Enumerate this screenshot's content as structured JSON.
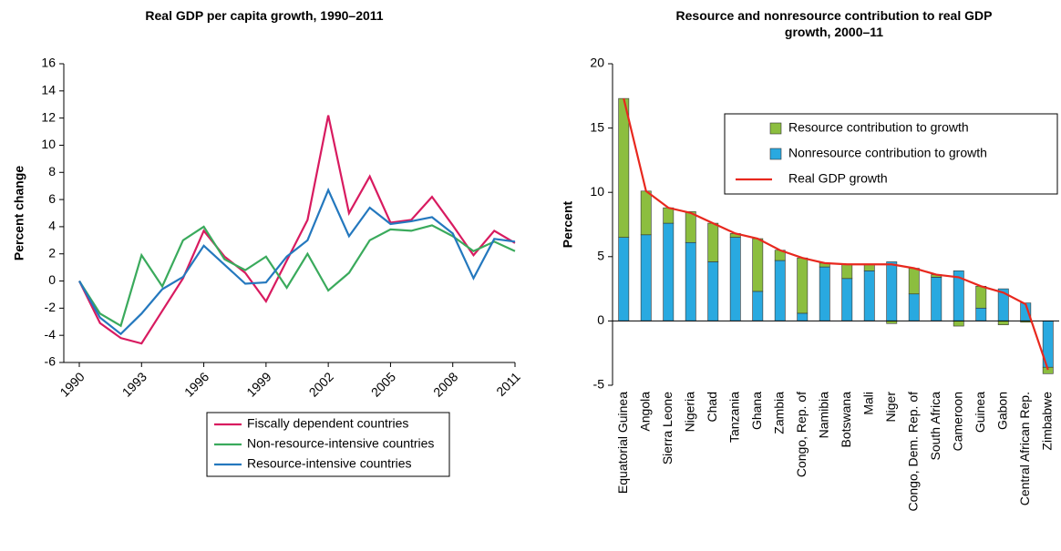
{
  "chart_data": [
    {
      "type": "line",
      "title": "Real GDP per capita growth, 1990–2011",
      "ylabel": "Percent change",
      "x": [
        1990,
        1991,
        1992,
        1993,
        1994,
        1995,
        1996,
        1997,
        1998,
        1999,
        2000,
        2001,
        2002,
        2003,
        2004,
        2005,
        2006,
        2007,
        2008,
        2009,
        2010,
        2011
      ],
      "xlim": [
        1990,
        2011
      ],
      "xticks": [
        1990,
        1993,
        1996,
        1999,
        2002,
        2005,
        2008,
        2011
      ],
      "ylim": [
        -6,
        16
      ],
      "yticks": [
        -6,
        -4,
        -2,
        0,
        2,
        4,
        6,
        8,
        10,
        12,
        14,
        16
      ],
      "legend": "bottom",
      "series": [
        {
          "name": "Fiscally dependent countries",
          "color": "#d81b60",
          "values": [
            0,
            -3.1,
            -4.2,
            -4.6,
            -2.2,
            0.2,
            3.7,
            1.8,
            0.6,
            -1.5,
            1.5,
            4.5,
            12.2,
            5.0,
            7.7,
            4.3,
            4.5,
            6.2,
            4.1,
            1.9,
            3.7,
            2.8
          ]
        },
        {
          "name": "Non-resource-intensive countries",
          "color": "#3aaa5c",
          "values": [
            0,
            -2.4,
            -3.3,
            1.9,
            -0.4,
            3.0,
            4.0,
            1.6,
            0.8,
            1.8,
            -0.5,
            2.0,
            -0.7,
            0.6,
            3.0,
            3.8,
            3.7,
            4.1,
            3.3,
            2.2,
            2.9,
            2.2
          ]
        },
        {
          "name": "Resource-intensive countries",
          "color": "#2478be",
          "values": [
            0,
            -2.7,
            -3.9,
            -2.4,
            -0.6,
            0.3,
            2.6,
            1.2,
            -0.2,
            -0.1,
            1.8,
            3.0,
            6.7,
            3.3,
            5.4,
            4.2,
            4.4,
            4.7,
            3.5,
            0.2,
            3.1,
            2.9
          ]
        }
      ]
    },
    {
      "type": "bar",
      "stacked": true,
      "title": "Resource and nonresource contribution to real GDP growth, 2000–11",
      "ylabel": "Percent",
      "categories": [
        "Equatorial Guinea",
        "Angola",
        "Sierra Leone",
        "Nigeria",
        "Chad",
        "Tanzania",
        "Ghana",
        "Zambia",
        "Congo, Rep. of",
        "Namibia",
        "Botswana",
        "Mali",
        "Niger",
        "Congo, Dem. Rep. of",
        "South Africa",
        "Cameroon",
        "Guinea",
        "Gabon",
        "Central African Rep.",
        "Zimbabwe"
      ],
      "ylim": [
        -5,
        20
      ],
      "yticks": [
        -5,
        0,
        5,
        10,
        15,
        20
      ],
      "legend": "upper right",
      "series": [
        {
          "name": "Resource contribution to growth",
          "color": "#8cbe3f",
          "values": [
            10.8,
            3.4,
            1.2,
            2.4,
            3.0,
            0.3,
            4.1,
            0.8,
            4.3,
            0.3,
            1.1,
            0.5,
            -0.2,
            2.0,
            0.2,
            -0.4,
            1.7,
            -0.3,
            -0.1,
            -0.5
          ]
        },
        {
          "name": "Nonresource contribution to growth",
          "color": "#29a9e0",
          "values": [
            6.5,
            6.7,
            7.6,
            6.1,
            4.6,
            6.5,
            2.3,
            4.7,
            0.6,
            4.2,
            3.3,
            3.9,
            4.6,
            2.1,
            3.4,
            3.9,
            1.0,
            2.5,
            1.4,
            -3.6
          ]
        },
        {
          "name": "Real GDP growth",
          "type": "line",
          "color": "#e8281e",
          "values": [
            17.3,
            10.1,
            8.8,
            8.4,
            7.6,
            6.8,
            6.4,
            5.5,
            4.9,
            4.5,
            4.4,
            4.4,
            4.4,
            4.1,
            3.6,
            3.4,
            2.7,
            2.2,
            1.3,
            -3.8
          ]
        }
      ]
    }
  ]
}
